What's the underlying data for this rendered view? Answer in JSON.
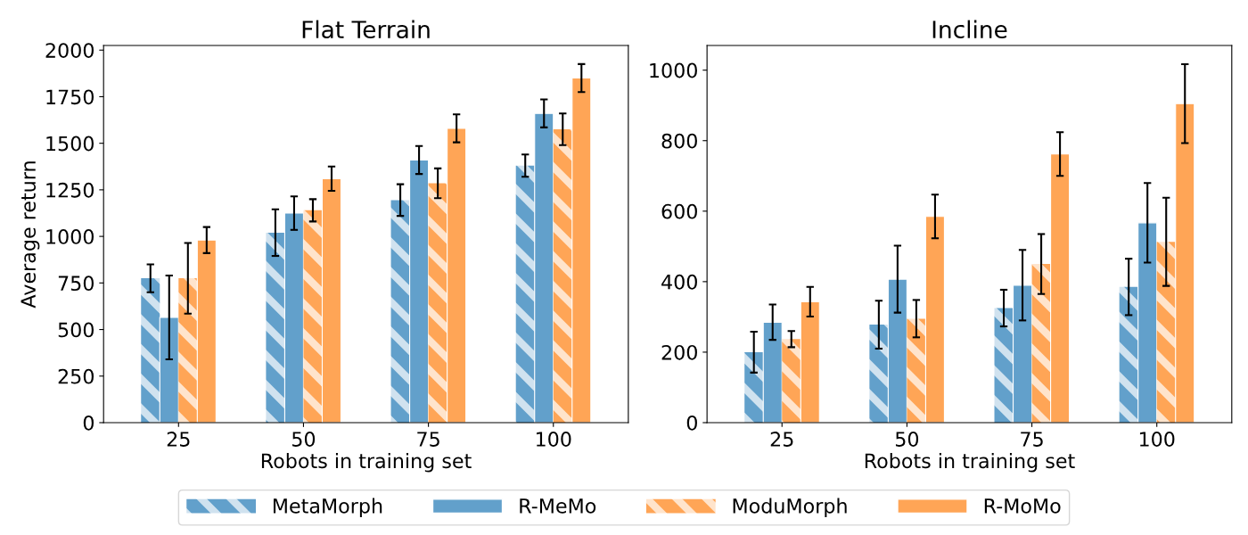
{
  "chart_data": [
    {
      "type": "bar",
      "title": "Flat Terrain",
      "xlabel": "Robots in training set",
      "ylabel": "Average return",
      "categories": [
        "25",
        "50",
        "75",
        "100"
      ],
      "ylim": [
        0,
        2025
      ],
      "yticks": [
        0,
        250,
        500,
        750,
        1000,
        1250,
        1500,
        1750,
        2000
      ],
      "grid": false,
      "legend": "bottom",
      "series": [
        {
          "name": "MetaMorph",
          "color": "#62a0cb",
          "values": [
            775,
            1020,
            1195,
            1380
          ],
          "errors": [
            75,
            125,
            85,
            60
          ]
        },
        {
          "name": "R-MeMo",
          "color": "#62a0cb",
          "values": [
            565,
            1125,
            1410,
            1660
          ],
          "errors": [
            225,
            90,
            75,
            75
          ]
        },
        {
          "name": "ModuMorph",
          "color": "#ffa556",
          "values": [
            775,
            1140,
            1285,
            1575
          ],
          "errors": [
            190,
            60,
            80,
            85
          ]
        },
        {
          "name": "R-MoMo",
          "color": "#ffa556",
          "values": [
            980,
            1310,
            1580,
            1850
          ],
          "errors": [
            70,
            65,
            75,
            75
          ]
        }
      ]
    },
    {
      "type": "bar",
      "title": "Incline",
      "xlabel": "Robots in training set",
      "categories": [
        "25",
        "50",
        "75",
        "100"
      ],
      "ylim": [
        0,
        1070
      ],
      "yticks": [
        0,
        200,
        400,
        600,
        800,
        1000
      ],
      "grid": false,
      "series": [
        {
          "name": "MetaMorph",
          "color": "#62a0cb",
          "values": [
            200,
            278,
            325,
            385
          ],
          "errors": [
            58,
            68,
            52,
            80
          ]
        },
        {
          "name": "R-MeMo",
          "color": "#62a0cb",
          "values": [
            285,
            407,
            390,
            567
          ],
          "errors": [
            50,
            95,
            100,
            113
          ]
        },
        {
          "name": "ModuMorph",
          "color": "#ffa556",
          "values": [
            237,
            295,
            450,
            513
          ],
          "errors": [
            23,
            53,
            85,
            125
          ]
        },
        {
          "name": "R-MoMo",
          "color": "#ffa556",
          "values": [
            343,
            585,
            762,
            905
          ],
          "errors": [
            42,
            62,
            62,
            112
          ]
        }
      ]
    }
  ]
}
